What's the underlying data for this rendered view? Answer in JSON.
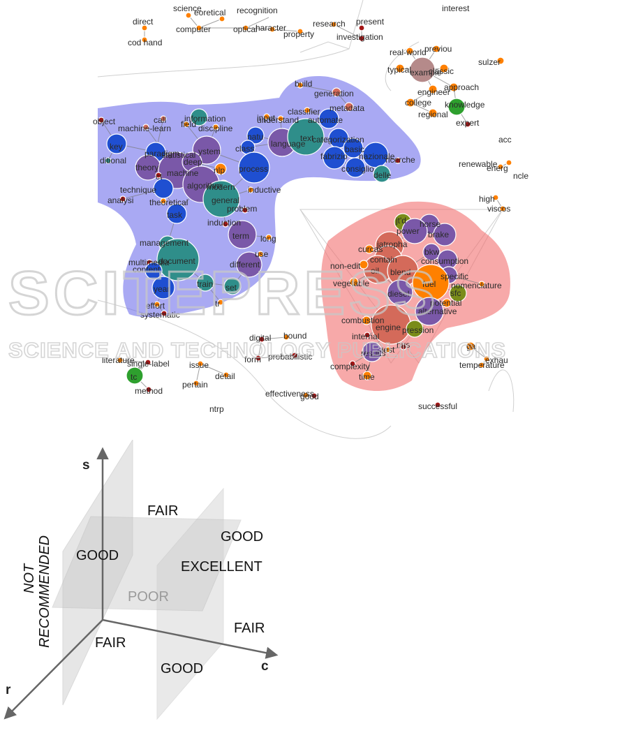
{
  "network": {
    "hull_colors": {
      "blue": "#6a6aeb",
      "red": "#f26a6a"
    },
    "node_colors": {
      "orange": "#ff8000",
      "darkred": "#a31515",
      "blue": "#1f4fd1",
      "teal": "#2f8e8a",
      "purple": "#7a58a8",
      "green": "#2ea02e",
      "olive": "#7a8c1a",
      "salmon": "#d46a5a",
      "mauve": "#b58a8a"
    },
    "labels": [
      "science",
      "eoretical",
      "recognition",
      "present",
      "interest",
      "direct",
      "computer",
      "optical",
      "haracter",
      "property",
      "research",
      "investigation",
      "real-world",
      "previou",
      "cod hand",
      "sulzer",
      "typical",
      "example",
      "classic",
      "engineer",
      "approach",
      "build",
      "generation",
      "college",
      "knowledge",
      "metadata",
      "classifier",
      "input",
      "understand",
      "automate",
      "regional",
      "expert",
      "object",
      "machine-learn",
      "information",
      "field",
      "discipline",
      "call",
      "ditional",
      "key",
      "paradigm",
      "statistical",
      "ystem",
      "natu",
      "language",
      "text",
      "categorization",
      "class",
      "basic",
      "nazionale",
      "ricerche",
      "fabrizio",
      "consiglio",
      "delle",
      "theory",
      "machine",
      "deep",
      "nlp",
      "process",
      "ct",
      "algorithm",
      "modern",
      "technique",
      "theoretical",
      "general",
      "inductive",
      "renewable",
      "energ",
      "acc",
      "analysi",
      "task",
      "problem",
      "induction",
      "term",
      "long",
      "high",
      "viscos",
      "jt'd",
      "horse",
      "power",
      "brake",
      "management",
      "document",
      "multimedia",
      "use",
      "jatropha",
      "curcas",
      "contain",
      "bkw",
      "consumption",
      "oil",
      "blend",
      "non-edit",
      "specific",
      "nomenclature",
      "content",
      "different",
      "vegetable",
      "diesel",
      "year",
      "train",
      "set",
      "fuel",
      "sfc",
      "alternative",
      "potential",
      "effort",
      "systematic",
      "tr",
      "combustion",
      "engine",
      "pression",
      "internal",
      "bound",
      "digital",
      "form",
      "probabilistic",
      "literature",
      "single-label",
      "issue",
      "ga",
      "exhau",
      "temperature",
      "test",
      "results",
      "nus",
      "complexity",
      "time",
      "tc",
      "method",
      "pertain",
      "detail",
      "effectiveness",
      "good",
      "successful",
      "ntrp",
      "ncle"
    ]
  },
  "diagram": {
    "axes": {
      "s": "s",
      "c": "c",
      "r": "r"
    },
    "zones": {
      "fair_top": "FAIR",
      "good_right": "GOOD",
      "good_left": "GOOD",
      "excellent": "EXCELLENT",
      "poor": "POOR",
      "fair_right": "FAIR",
      "fair_bottom": "FAIR",
      "good_bottom": "GOOD",
      "not_recommended": [
        "NOT",
        "RECOMMENDED"
      ]
    }
  },
  "watermark": {
    "line1": "SCITEPRESS",
    "line2": "SCIENCE AND TECHNOLOGY PUBLICATIONS"
  }
}
